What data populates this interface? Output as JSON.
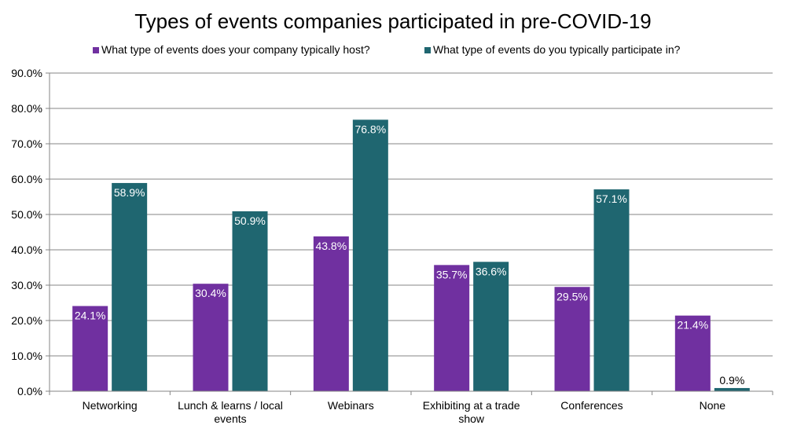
{
  "chart_data": {
    "type": "bar",
    "title": "Types of events companies participated in pre-COVID-19",
    "categories": [
      [
        "Networking"
      ],
      [
        "Lunch & learns / local",
        "events"
      ],
      [
        "Webinars"
      ],
      [
        "Exhibiting at a trade",
        "show"
      ],
      [
        "Conferences"
      ],
      [
        "None"
      ]
    ],
    "series": [
      {
        "name": "What type of events does your company typically host?",
        "color": "#7030A0",
        "values": [
          24.1,
          30.4,
          43.8,
          35.7,
          29.5,
          21.4
        ]
      },
      {
        "name": "What type of events do you typically participate in?",
        "color": "#1F6670",
        "values": [
          58.9,
          50.9,
          76.8,
          36.6,
          57.1,
          0.9
        ]
      }
    ],
    "ylim": [
      0,
      90
    ],
    "yticks": [
      "0.0%",
      "10.0%",
      "20.0%",
      "30.0%",
      "40.0%",
      "50.0%",
      "60.0%",
      "70.0%",
      "80.0%",
      "90.0%"
    ],
    "grid": true,
    "legend": "top",
    "value_format": "percent-1dp"
  }
}
